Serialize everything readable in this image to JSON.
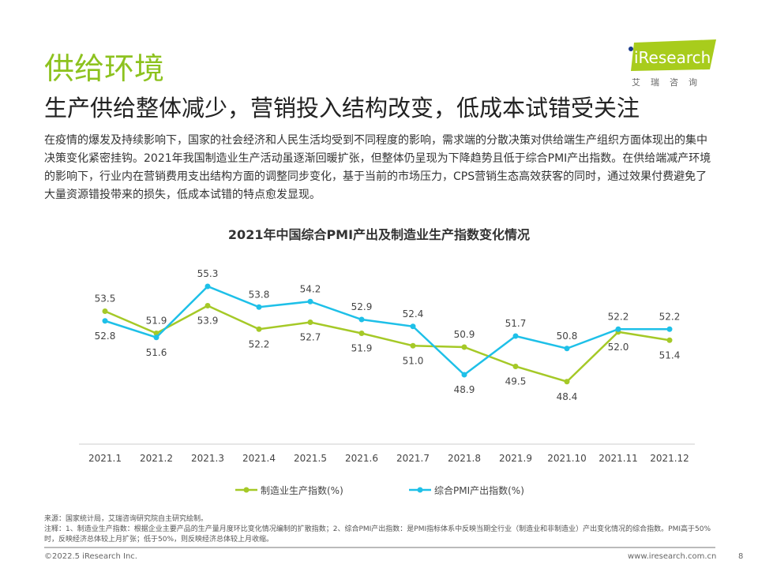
{
  "header": {
    "title": "供给环境",
    "subtitle": "生产供给整体减少，营销投入结构改变，低成本试错受关注"
  },
  "logo": {
    "brand": "iResearch",
    "tagline": "艾瑞咨询",
    "accent": "#8dc21f"
  },
  "body": "在疫情的爆发及持续影响下，国家的社会经济和人民生活均受到不同程度的影响，需求端的分散决策对供给端生产组织方面体现出的集中决策变化紧密挂钩。2021年我国制造业生产活动虽逐渐回暖扩张，但整体仍呈现为下降趋势且低于综合PMI产出指数。在供给端减产环境的影响下，行业内在营销费用支出结构方面的调整同步变化，基于当前的市场压力，CPS营销生态高效获客的同时，通过效果付费避免了大量资源错投带来的损失，低成本试错的特点愈发显现。",
  "chart_data": {
    "type": "line",
    "title": "2021年中国综合PMI产出及制造业生产指数变化情况",
    "categories": [
      "2021.1",
      "2021.2",
      "2021.3",
      "2021.4",
      "2021.5",
      "2021.6",
      "2021.7",
      "2021.8",
      "2021.9",
      "2021.10",
      "2021.11",
      "2021.12"
    ],
    "series": [
      {
        "name": "制造业生产指数(%)",
        "color": "#a5c927",
        "values": [
          53.5,
          51.9,
          53.9,
          52.2,
          52.7,
          51.9,
          51.0,
          50.9,
          49.5,
          48.4,
          52.0,
          51.4
        ]
      },
      {
        "name": "综合PMI产出指数(%)",
        "color": "#1ec0e8",
        "values": [
          52.8,
          51.6,
          55.3,
          53.8,
          54.2,
          52.9,
          52.4,
          48.9,
          51.7,
          50.8,
          52.2,
          52.2
        ]
      }
    ],
    "legend": "bottom",
    "grid": false
  },
  "notes": {
    "source": "来源：国家统计局，艾瑞咨询研究院自主研究绘制。",
    "note": "注释：1、制造业生产指数：根据企业主要产品的生产量月度环比变化情况编制的扩散指数；2、综合PMI产出指数：是PMI指标体系中反映当期全行业（制造业和非制造业）产出变化情况的综合指数。PMI高于50%时，反映经济总体较上月扩张；低于50%，则反映经济总体较上月收缩。"
  },
  "footer": {
    "copyright": "©2022.5 iResearch Inc.",
    "url": "www.iresearch.com.cn",
    "page": "8"
  }
}
